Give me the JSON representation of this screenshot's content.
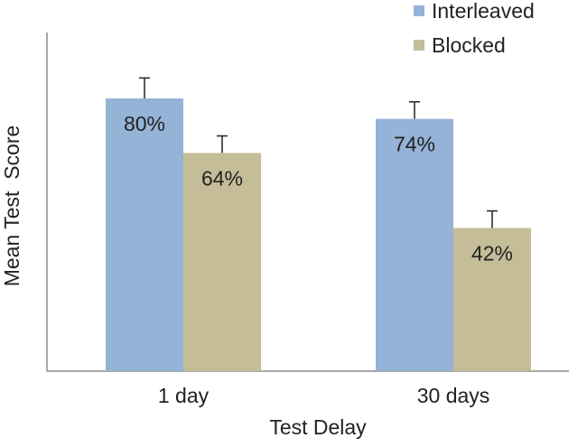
{
  "chart_data": {
    "type": "bar",
    "title": "",
    "xlabel": "Test Delay",
    "ylabel": "Mean Test  Score",
    "categories": [
      "1 day",
      "30 days"
    ],
    "series": [
      {
        "name": "Interleaved",
        "color": "#95B3D7",
        "values": [
          80,
          74
        ],
        "labels": [
          "80%",
          "74%"
        ],
        "error_plus": [
          6,
          5
        ]
      },
      {
        "name": "Blocked",
        "color": "#C4BD97",
        "values": [
          64,
          42
        ],
        "labels": [
          "64%",
          "42%"
        ],
        "error_plus": [
          5,
          5
        ]
      }
    ],
    "ylim": [
      0,
      100
    ],
    "y_ticks_visible": false,
    "grid": false,
    "legend_position": "top-right",
    "error_bars": "upper whisker only"
  }
}
